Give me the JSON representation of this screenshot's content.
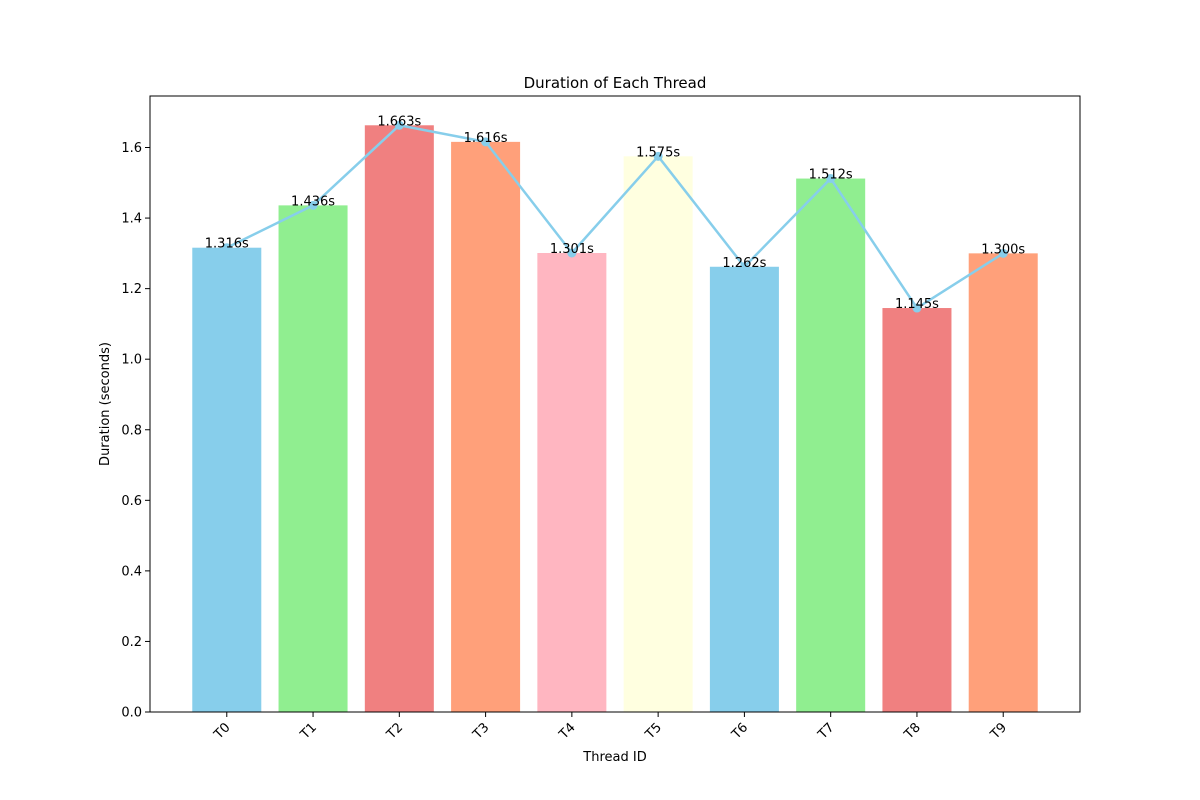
{
  "chart_data": {
    "type": "bar",
    "title": "Duration of Each Thread",
    "xlabel": "Thread ID",
    "ylabel": "Duration (seconds)",
    "categories": [
      "T0",
      "T1",
      "T2",
      "T3",
      "T4",
      "T5",
      "T6",
      "T7",
      "T8",
      "T9"
    ],
    "values": [
      1.316,
      1.436,
      1.663,
      1.616,
      1.301,
      1.575,
      1.262,
      1.512,
      1.145,
      1.3
    ],
    "value_labels": [
      "1.316s",
      "1.436s",
      "1.663s",
      "1.616s",
      "1.301s",
      "1.575s",
      "1.262s",
      "1.512s",
      "1.145s",
      "1.300s"
    ],
    "bar_colors": [
      "#87ceeb",
      "#90ee90",
      "#f08080",
      "#ffa07a",
      "#ffb6c1",
      "#ffffe0",
      "#87ceeb",
      "#90ee90",
      "#f08080",
      "#ffa07a"
    ],
    "line_overlay": {
      "color": "#87ceeb",
      "markers": true
    },
    "ylim": [
      0,
      1.746
    ],
    "yticks": [
      0.0,
      0.2,
      0.4,
      0.6,
      0.8,
      1.0,
      1.2,
      1.4,
      1.6
    ],
    "ytick_labels": [
      "0.0",
      "0.2",
      "0.4",
      "0.6",
      "0.8",
      "1.0",
      "1.2",
      "1.4",
      "1.6"
    ],
    "grid": false,
    "xtick_rotation_deg": 45
  }
}
